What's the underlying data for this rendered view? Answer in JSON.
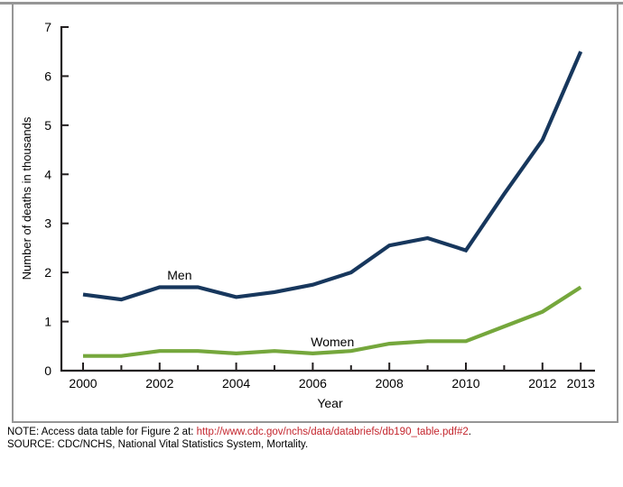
{
  "figure": {
    "note_prefix": "NOTE: Access data table for Figure 2 at: ",
    "note_link": "http://www.cdc.gov/nchs/data/databriefs/db190_table.pdf#2",
    "note_suffix": ".",
    "source": "SOURCE: CDC/NCHS, National Vital Statistics System, Mortality.",
    "link_color": "#C4262E",
    "frame_color": "#969696"
  },
  "chart_data": {
    "type": "line",
    "x": [
      2000,
      2001,
      2002,
      2003,
      2004,
      2005,
      2006,
      2007,
      2008,
      2009,
      2010,
      2011,
      2012,
      2013
    ],
    "series": [
      {
        "name": "Men",
        "color": "#17375D",
        "values": [
          1.55,
          1.45,
          1.7,
          1.7,
          1.5,
          1.6,
          1.75,
          2.0,
          2.55,
          2.7,
          2.45,
          3.6,
          4.7,
          6.5
        ]
      },
      {
        "name": "Women",
        "color": "#75A73C",
        "values": [
          0.3,
          0.3,
          0.4,
          0.4,
          0.35,
          0.4,
          0.35,
          0.4,
          0.55,
          0.6,
          0.6,
          0.9,
          1.2,
          1.7
        ]
      }
    ],
    "title": "",
    "xlabel": "Year",
    "ylabel": "Number of deaths in thousands",
    "ylim": [
      0,
      7
    ],
    "y_ticks": [
      0,
      1,
      2,
      3,
      4,
      5,
      6,
      7
    ],
    "x_labeled_ticks": [
      2000,
      2002,
      2004,
      2006,
      2008,
      2010,
      2012,
      2013
    ],
    "grid": false,
    "legend_position": "inline-labels",
    "axis_color": "#231F20",
    "annotations": [
      {
        "text": "Men",
        "year": 2002.2,
        "value": 1.86
      },
      {
        "text": "Women",
        "year": 2005.95,
        "value": 0.5
      }
    ]
  }
}
